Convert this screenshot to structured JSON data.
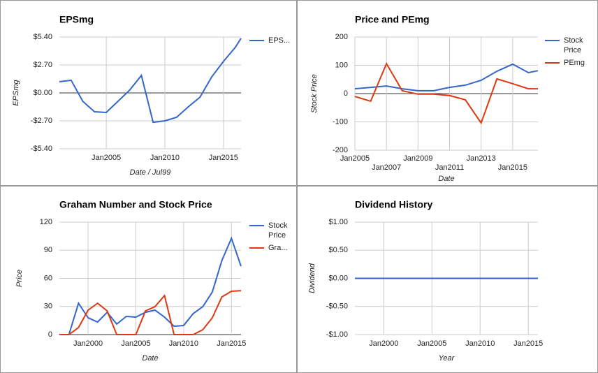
{
  "chart_data": [
    {
      "type": "line",
      "title": "EPSmg",
      "x_label": "Date / Jul99",
      "y_label": "EPSmg",
      "x": [
        2001,
        2002,
        2003,
        2004,
        2005,
        2006,
        2007,
        2008,
        2009,
        2010,
        2011,
        2012,
        2013,
        2014,
        2015,
        2016,
        2016.5
      ],
      "xlim": [
        2001,
        2016.5
      ],
      "xticks": [
        {
          "value": 2005,
          "label": "Jan2005"
        },
        {
          "value": 2010,
          "label": "Jan2010"
        },
        {
          "value": 2015,
          "label": "Jan2015"
        }
      ],
      "ylim": [
        -5.4,
        5.4
      ],
      "yticks": [
        {
          "value": 5.4,
          "label": "$5.40"
        },
        {
          "value": 2.7,
          "label": "$2.70"
        },
        {
          "value": 0,
          "label": "$0.00"
        },
        {
          "value": -2.7,
          "label": "-$2.70"
        },
        {
          "value": -5.4,
          "label": "-$5.40"
        }
      ],
      "grid": true,
      "series": [
        {
          "name": "EPS...",
          "color": "#3366cc",
          "values": [
            1.08,
            1.22,
            -0.81,
            -1.82,
            -1.89,
            -0.81,
            0.27,
            1.69,
            -2.84,
            -2.7,
            -2.36,
            -1.35,
            -0.41,
            1.55,
            3.04,
            4.39,
            5.27
          ]
        }
      ]
    },
    {
      "type": "line",
      "title": "Price and PEmg",
      "x_label": "Date",
      "y_label": "Stock Price",
      "x": [
        2005,
        2006,
        2007,
        2008,
        2009,
        2010,
        2011,
        2012,
        2013,
        2014,
        2015,
        2016,
        2016.6
      ],
      "xlim": [
        2005,
        2016.6
      ],
      "xticks": [
        {
          "value": 2005,
          "label": "Jan2005"
        },
        {
          "value": 2007,
          "label": "Jan2007"
        },
        {
          "value": 2009,
          "label": "Jan2009"
        },
        {
          "value": 2011,
          "label": "Jan2011"
        },
        {
          "value": 2013,
          "label": "Jan2013"
        },
        {
          "value": 2015,
          "label": "Jan2015"
        }
      ],
      "ylim": [
        -200,
        200
      ],
      "yticks": [
        200,
        100,
        0,
        -100,
        -200
      ],
      "grid": true,
      "series": [
        {
          "name": "Stock Price",
          "color": "#3366cc",
          "values": [
            17,
            22,
            27,
            17,
            10,
            10,
            22,
            30,
            47,
            79,
            104,
            74,
            81
          ]
        },
        {
          "name": "PEmg",
          "color": "#dc3912",
          "values": [
            -10,
            -27,
            106,
            10,
            -2,
            -2,
            -7,
            -22,
            -104,
            52,
            35,
            17,
            17
          ]
        }
      ]
    },
    {
      "type": "line",
      "title": "Graham Number and Stock Price",
      "x_label": "Date",
      "y_label": "Price",
      "x": [
        1997,
        1998,
        1999,
        2000,
        2001,
        2002,
        2003,
        2004,
        2005,
        2006,
        2007,
        2008,
        2009,
        2010,
        2011,
        2012,
        2013,
        2014,
        2015,
        2016
      ],
      "xlim": [
        1997,
        2016
      ],
      "xticks": [
        {
          "value": 2000,
          "label": "Jan2000"
        },
        {
          "value": 2005,
          "label": "Jan2005"
        },
        {
          "value": 2010,
          "label": "Jan2010"
        },
        {
          "value": 2015,
          "label": "Jan2015"
        }
      ],
      "ylim": [
        0,
        120
      ],
      "yticks": [
        120,
        90,
        60,
        30,
        0
      ],
      "grid": true,
      "series": [
        {
          "name": "Stock Price",
          "color": "#3366cc",
          "values": [
            0,
            0,
            33.5,
            17.9,
            13.4,
            23.8,
            11.2,
            19.4,
            18.6,
            23.8,
            26.1,
            18.6,
            8.9,
            9.7,
            22.4,
            29.8,
            45.4,
            79,
            102.8,
            73
          ]
        },
        {
          "name": "Gra...",
          "color": "#dc3912",
          "values": [
            0,
            0,
            7.5,
            26,
            33.5,
            25.3,
            0,
            0,
            0,
            25.3,
            29.8,
            41.7,
            0,
            0,
            0,
            5.2,
            17.9,
            40.2,
            46.2,
            46.9
          ]
        }
      ]
    },
    {
      "type": "line",
      "title": "Dividend History",
      "x_label": "Year",
      "y_label": "Dividend",
      "x": [
        1997,
        1998,
        1999,
        2000,
        2001,
        2002,
        2003,
        2004,
        2005,
        2006,
        2007,
        2008,
        2009,
        2010,
        2011,
        2012,
        2013,
        2014,
        2015,
        2016
      ],
      "xlim": [
        1997,
        2016
      ],
      "xticks": [
        {
          "value": 2000,
          "label": "Jan2000"
        },
        {
          "value": 2005,
          "label": "Jan2005"
        },
        {
          "value": 2010,
          "label": "Jan2010"
        },
        {
          "value": 2015,
          "label": "Jan2015"
        }
      ],
      "ylim": [
        -1,
        1
      ],
      "yticks": [
        {
          "value": 1,
          "label": "$1.00"
        },
        {
          "value": 0.5,
          "label": "$0.50"
        },
        {
          "value": 0,
          "label": "$0.00"
        },
        {
          "value": -0.5,
          "label": "-$0.50"
        },
        {
          "value": -1,
          "label": "-$1.00"
        }
      ],
      "grid": true,
      "series": [
        {
          "color": "#3366cc",
          "values": [
            0,
            0,
            0,
            0,
            0,
            0,
            0,
            0,
            0,
            0,
            0,
            0,
            0,
            0,
            0,
            0,
            0,
            0,
            0,
            0
          ]
        }
      ]
    }
  ]
}
